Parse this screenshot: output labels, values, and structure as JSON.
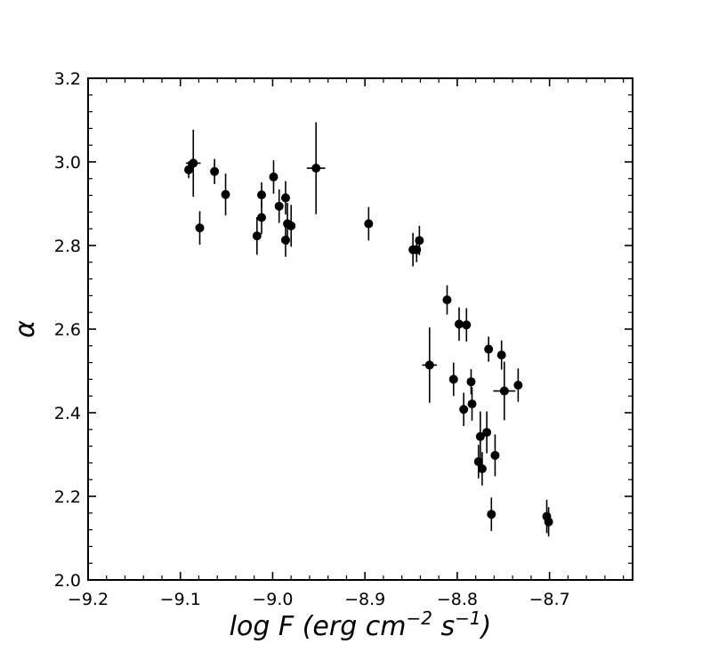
{
  "chart_data": {
    "type": "scatter",
    "title": "",
    "xlabel": {
      "text": "log F (erg cm",
      "exp1": "−2",
      "mid": " s",
      "exp2": "−1",
      "end": ")"
    },
    "ylabel": "α",
    "xlim": [
      -9.2,
      -8.61
    ],
    "ylim": [
      2.0,
      3.2
    ],
    "x_ticks": [
      -9.2,
      -9.1,
      -9.0,
      -8.9,
      -8.8,
      -8.7
    ],
    "x_tick_labels": [
      "−9.2",
      "−9.1",
      "−9.0",
      "−8.9",
      "−8.8",
      "−8.7"
    ],
    "y_ticks": [
      2.0,
      2.2,
      2.4,
      2.6,
      2.8,
      3.0,
      3.2
    ],
    "y_tick_labels": [
      "2.0",
      "2.2",
      "2.4",
      "2.6",
      "2.8",
      "3.0",
      "3.2"
    ],
    "grid": false,
    "marker_color": "#000000",
    "points": [
      {
        "x": -9.091,
        "y": 2.981,
        "xerr": 0.004,
        "yerr": 0.02
      },
      {
        "x": -9.086,
        "y": 2.997,
        "xerr": 0.008,
        "yerr": 0.08
      },
      {
        "x": -9.079,
        "y": 2.842,
        "xerr": 0.002,
        "yerr": 0.04
      },
      {
        "x": -9.063,
        "y": 2.977,
        "xerr": 0.002,
        "yerr": 0.03
      },
      {
        "x": -9.051,
        "y": 2.922,
        "xerr": 0.002,
        "yerr": 0.05
      },
      {
        "x": -9.017,
        "y": 2.823,
        "xerr": 0.002,
        "yerr": 0.045
      },
      {
        "x": -9.012,
        "y": 2.921,
        "xerr": 0.002,
        "yerr": 0.03
      },
      {
        "x": -9.012,
        "y": 2.867,
        "xerr": 0.002,
        "yerr": 0.04
      },
      {
        "x": -8.999,
        "y": 2.964,
        "xerr": 0.002,
        "yerr": 0.04
      },
      {
        "x": -8.993,
        "y": 2.894,
        "xerr": 0.002,
        "yerr": 0.04
      },
      {
        "x": -8.986,
        "y": 2.914,
        "xerr": 0.002,
        "yerr": 0.04
      },
      {
        "x": -8.986,
        "y": 2.813,
        "xerr": 0.002,
        "yerr": 0.04
      },
      {
        "x": -8.984,
        "y": 2.852,
        "xerr": 0.002,
        "yerr": 0.05
      },
      {
        "x": -8.98,
        "y": 2.847,
        "xerr": 0.002,
        "yerr": 0.05
      },
      {
        "x": -8.953,
        "y": 2.985,
        "xerr": 0.01,
        "yerr": 0.11
      },
      {
        "x": -8.896,
        "y": 2.852,
        "xerr": 0.002,
        "yerr": 0.04
      },
      {
        "x": -8.848,
        "y": 2.79,
        "xerr": 0.002,
        "yerr": 0.04
      },
      {
        "x": -8.844,
        "y": 2.79,
        "xerr": 0.002,
        "yerr": 0.03
      },
      {
        "x": -8.841,
        "y": 2.812,
        "xerr": 0.002,
        "yerr": 0.035
      },
      {
        "x": -8.83,
        "y": 2.514,
        "xerr": 0.008,
        "yerr": 0.09
      },
      {
        "x": -8.811,
        "y": 2.67,
        "xerr": 0.002,
        "yerr": 0.035
      },
      {
        "x": -8.804,
        "y": 2.48,
        "xerr": 0.002,
        "yerr": 0.04
      },
      {
        "x": -8.798,
        "y": 2.612,
        "xerr": 0.002,
        "yerr": 0.04
      },
      {
        "x": -8.793,
        "y": 2.408,
        "xerr": 0.002,
        "yerr": 0.04
      },
      {
        "x": -8.79,
        "y": 2.61,
        "xerr": 0.002,
        "yerr": 0.04
      },
      {
        "x": -8.785,
        "y": 2.474,
        "xerr": 0.002,
        "yerr": 0.03
      },
      {
        "x": -8.784,
        "y": 2.421,
        "xerr": 0.002,
        "yerr": 0.04
      },
      {
        "x": -8.777,
        "y": 2.283,
        "xerr": 0.002,
        "yerr": 0.04
      },
      {
        "x": -8.775,
        "y": 2.343,
        "xerr": 0.002,
        "yerr": 0.06
      },
      {
        "x": -8.773,
        "y": 2.266,
        "xerr": 0.002,
        "yerr": 0.04
      },
      {
        "x": -8.768,
        "y": 2.353,
        "xerr": 0.002,
        "yerr": 0.05
      },
      {
        "x": -8.766,
        "y": 2.552,
        "xerr": 0.002,
        "yerr": 0.03
      },
      {
        "x": -8.763,
        "y": 2.157,
        "xerr": 0.002,
        "yerr": 0.04
      },
      {
        "x": -8.759,
        "y": 2.298,
        "xerr": 0.002,
        "yerr": 0.05
      },
      {
        "x": -8.752,
        "y": 2.538,
        "xerr": 0.002,
        "yerr": 0.035
      },
      {
        "x": -8.749,
        "y": 2.452,
        "xerr": 0.012,
        "yerr": 0.07
      },
      {
        "x": -8.734,
        "y": 2.466,
        "xerr": 0.002,
        "yerr": 0.04
      },
      {
        "x": -8.703,
        "y": 2.152,
        "xerr": 0.002,
        "yerr": 0.04
      },
      {
        "x": -8.701,
        "y": 2.139,
        "xerr": 0.002,
        "yerr": 0.035
      }
    ]
  }
}
